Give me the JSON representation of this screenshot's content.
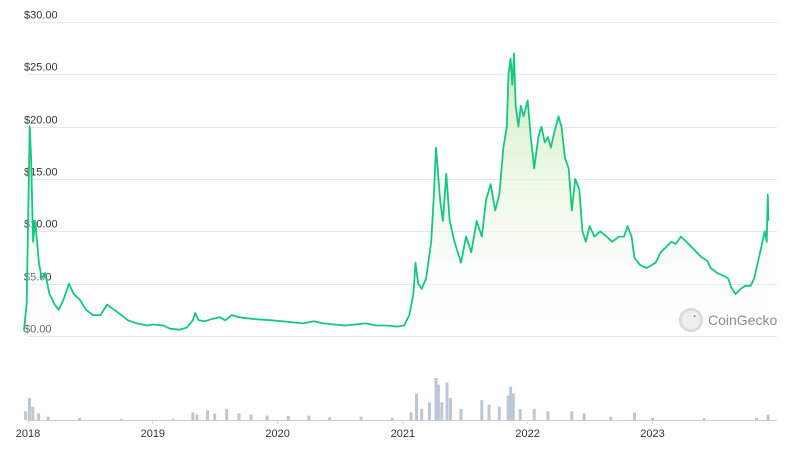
{
  "chart_data": {
    "type": "area",
    "y_axis": {
      "min": 0,
      "max": 30,
      "ticks": [
        {
          "value": 0,
          "label": "$0.00"
        },
        {
          "value": 5,
          "label": "$5.00"
        },
        {
          "value": 10,
          "label": "$10.00"
        },
        {
          "value": 15,
          "label": "$15.00"
        },
        {
          "value": 20,
          "label": "$20.00"
        },
        {
          "value": 25,
          "label": "$25.00"
        },
        {
          "value": 30,
          "label": "$30.00"
        }
      ],
      "grid": true
    },
    "x_axis": {
      "min": "2018-01-01",
      "max": "2023-12-31",
      "ticks": [
        {
          "value": "2018-01-01",
          "label": "2018"
        },
        {
          "value": "2019-01-01",
          "label": "2019"
        },
        {
          "value": "2020-01-01",
          "label": "2020"
        },
        {
          "value": "2021-01-01",
          "label": "2021"
        },
        {
          "value": "2022-01-01",
          "label": "2022"
        },
        {
          "value": "2023-01-01",
          "label": "2023"
        }
      ]
    },
    "series": [
      {
        "colors": {
          "line": "#16c784",
          "fill_top": "#c9eab4",
          "fill_bottom": "#ffffff"
        },
        "points": [
          [
            "2017-12-20",
            0.5
          ],
          [
            "2017-12-28",
            3.0
          ],
          [
            "2018-01-02",
            12.0
          ],
          [
            "2018-01-06",
            20.0
          ],
          [
            "2018-01-10",
            17.0
          ],
          [
            "2018-01-16",
            9.0
          ],
          [
            "2018-01-22",
            11.0
          ],
          [
            "2018-02-02",
            7.0
          ],
          [
            "2018-02-10",
            5.5
          ],
          [
            "2018-02-20",
            6.0
          ],
          [
            "2018-03-05",
            4.0
          ],
          [
            "2018-03-20",
            3.0
          ],
          [
            "2018-04-01",
            2.5
          ],
          [
            "2018-04-15",
            3.5
          ],
          [
            "2018-05-01",
            5.0
          ],
          [
            "2018-05-15",
            4.0
          ],
          [
            "2018-06-01",
            3.5
          ],
          [
            "2018-06-20",
            2.5
          ],
          [
            "2018-07-10",
            2.0
          ],
          [
            "2018-08-01",
            2.0
          ],
          [
            "2018-08-20",
            3.0
          ],
          [
            "2018-09-10",
            2.5
          ],
          [
            "2018-10-01",
            2.0
          ],
          [
            "2018-10-20",
            1.5
          ],
          [
            "2018-11-15",
            1.2
          ],
          [
            "2018-12-15",
            1.0
          ],
          [
            "2019-01-01",
            1.1
          ],
          [
            "2019-02-01",
            1.0
          ],
          [
            "2019-02-20",
            0.7
          ],
          [
            "2019-03-20",
            0.6
          ],
          [
            "2019-04-10",
            0.8
          ],
          [
            "2019-04-28",
            1.5
          ],
          [
            "2019-05-05",
            2.2
          ],
          [
            "2019-05-15",
            1.5
          ],
          [
            "2019-06-01",
            1.4
          ],
          [
            "2019-06-20",
            1.6
          ],
          [
            "2019-07-15",
            1.8
          ],
          [
            "2019-08-01",
            1.5
          ],
          [
            "2019-08-20",
            2.0
          ],
          [
            "2019-09-10",
            1.8
          ],
          [
            "2019-10-01",
            1.7
          ],
          [
            "2019-11-01",
            1.6
          ],
          [
            "2019-12-15",
            1.5
          ],
          [
            "2020-01-15",
            1.4
          ],
          [
            "2020-02-15",
            1.3
          ],
          [
            "2020-03-15",
            1.2
          ],
          [
            "2020-04-15",
            1.4
          ],
          [
            "2020-05-15",
            1.2
          ],
          [
            "2020-06-15",
            1.1
          ],
          [
            "2020-07-15",
            1.0
          ],
          [
            "2020-08-15",
            1.1
          ],
          [
            "2020-09-15",
            1.2
          ],
          [
            "2020-10-15",
            1.0
          ],
          [
            "2020-11-15",
            1.0
          ],
          [
            "2020-12-15",
            0.9
          ],
          [
            "2021-01-05",
            1.0
          ],
          [
            "2021-01-20",
            2.0
          ],
          [
            "2021-02-01",
            4.0
          ],
          [
            "2021-02-07",
            7.0
          ],
          [
            "2021-02-15",
            5.0
          ],
          [
            "2021-02-25",
            4.5
          ],
          [
            "2021-03-10",
            5.5
          ],
          [
            "2021-03-25",
            9.0
          ],
          [
            "2021-04-01",
            13.0
          ],
          [
            "2021-04-08",
            18.0
          ],
          [
            "2021-04-13",
            16.0
          ],
          [
            "2021-04-20",
            13.0
          ],
          [
            "2021-04-28",
            11.0
          ],
          [
            "2021-05-08",
            15.5
          ],
          [
            "2021-05-18",
            11.0
          ],
          [
            "2021-06-01",
            9.0
          ],
          [
            "2021-06-20",
            7.0
          ],
          [
            "2021-07-05",
            9.5
          ],
          [
            "2021-07-20",
            8.0
          ],
          [
            "2021-08-05",
            11.0
          ],
          [
            "2021-08-20",
            9.5
          ],
          [
            "2021-09-01",
            13.0
          ],
          [
            "2021-09-15",
            14.5
          ],
          [
            "2021-09-28",
            12.0
          ],
          [
            "2021-10-10",
            13.5
          ],
          [
            "2021-10-22",
            18.0
          ],
          [
            "2021-11-01",
            20.0
          ],
          [
            "2021-11-06",
            25.0
          ],
          [
            "2021-11-12",
            26.5
          ],
          [
            "2021-11-17",
            24.0
          ],
          [
            "2021-11-22",
            27.0
          ],
          [
            "2021-11-27",
            22.0
          ],
          [
            "2021-12-05",
            20.0
          ],
          [
            "2021-12-12",
            22.0
          ],
          [
            "2021-12-20",
            21.0
          ],
          [
            "2022-01-01",
            22.5
          ],
          [
            "2022-01-10",
            19.0
          ],
          [
            "2022-01-20",
            16.0
          ],
          [
            "2022-02-01",
            19.0
          ],
          [
            "2022-02-10",
            20.0
          ],
          [
            "2022-02-20",
            18.5
          ],
          [
            "2022-03-01",
            19.0
          ],
          [
            "2022-03-10",
            18.0
          ],
          [
            "2022-03-20",
            19.5
          ],
          [
            "2022-04-01",
            21.0
          ],
          [
            "2022-04-10",
            20.0
          ],
          [
            "2022-04-20",
            17.0
          ],
          [
            "2022-05-01",
            16.0
          ],
          [
            "2022-05-10",
            12.0
          ],
          [
            "2022-05-20",
            15.0
          ],
          [
            "2022-06-01",
            14.0
          ],
          [
            "2022-06-10",
            10.0
          ],
          [
            "2022-06-20",
            9.0
          ],
          [
            "2022-07-01",
            10.5
          ],
          [
            "2022-07-15",
            9.5
          ],
          [
            "2022-08-01",
            10.0
          ],
          [
            "2022-08-20",
            9.5
          ],
          [
            "2022-09-05",
            9.0
          ],
          [
            "2022-09-25",
            9.5
          ],
          [
            "2022-10-10",
            9.5
          ],
          [
            "2022-10-20",
            10.5
          ],
          [
            "2022-11-01",
            9.5
          ],
          [
            "2022-11-09",
            7.5
          ],
          [
            "2022-11-25",
            6.8
          ],
          [
            "2022-12-15",
            6.5
          ],
          [
            "2023-01-10",
            7.0
          ],
          [
            "2023-01-25",
            8.0
          ],
          [
            "2023-02-10",
            8.5
          ],
          [
            "2023-02-25",
            9.0
          ],
          [
            "2023-03-10",
            8.8
          ],
          [
            "2023-03-25",
            9.5
          ],
          [
            "2023-04-10",
            9.0
          ],
          [
            "2023-04-25",
            8.5
          ],
          [
            "2023-05-10",
            8.0
          ],
          [
            "2023-05-25",
            7.5
          ],
          [
            "2023-06-10",
            7.2
          ],
          [
            "2023-06-20",
            6.5
          ],
          [
            "2023-07-10",
            6.0
          ],
          [
            "2023-07-25",
            5.8
          ],
          [
            "2023-08-10",
            5.5
          ],
          [
            "2023-08-20",
            4.6
          ],
          [
            "2023-09-01",
            4.0
          ],
          [
            "2023-09-15",
            4.5
          ],
          [
            "2023-09-30",
            4.8
          ],
          [
            "2023-10-15",
            4.8
          ],
          [
            "2023-10-25",
            5.5
          ],
          [
            "2023-11-05",
            7.0
          ],
          [
            "2023-11-15",
            8.5
          ],
          [
            "2023-11-25",
            10.0
          ],
          [
            "2023-12-01",
            9.0
          ],
          [
            "2023-12-04",
            13.5
          ],
          [
            "2023-12-06",
            11.0
          ]
        ]
      }
    ],
    "volume": {
      "color": "#bcc7d6",
      "points": [
        [
          "2017-12-25",
          0.4
        ],
        [
          "2018-01-05",
          1.0
        ],
        [
          "2018-01-15",
          0.6
        ],
        [
          "2018-02-01",
          0.3
        ],
        [
          "2018-03-01",
          0.15
        ],
        [
          "2018-06-01",
          0.1
        ],
        [
          "2018-10-01",
          0.05
        ],
        [
          "2019-03-01",
          0.05
        ],
        [
          "2019-04-28",
          0.35
        ],
        [
          "2019-05-10",
          0.25
        ],
        [
          "2019-06-10",
          0.45
        ],
        [
          "2019-07-01",
          0.3
        ],
        [
          "2019-08-05",
          0.5
        ],
        [
          "2019-09-10",
          0.3
        ],
        [
          "2019-10-15",
          0.25
        ],
        [
          "2019-12-01",
          0.2
        ],
        [
          "2020-02-01",
          0.18
        ],
        [
          "2020-04-01",
          0.2
        ],
        [
          "2020-06-01",
          0.12
        ],
        [
          "2020-09-01",
          0.15
        ],
        [
          "2020-12-01",
          0.1
        ],
        [
          "2021-01-25",
          0.35
        ],
        [
          "2021-02-10",
          1.2
        ],
        [
          "2021-02-25",
          0.5
        ],
        [
          "2021-03-20",
          0.8
        ],
        [
          "2021-04-08",
          1.9
        ],
        [
          "2021-04-15",
          1.6
        ],
        [
          "2021-04-25",
          0.8
        ],
        [
          "2021-05-10",
          1.7
        ],
        [
          "2021-05-20",
          1.0
        ],
        [
          "2021-06-20",
          0.5
        ],
        [
          "2021-08-20",
          0.9
        ],
        [
          "2021-09-10",
          0.7
        ],
        [
          "2021-10-10",
          0.6
        ],
        [
          "2021-11-05",
          1.1
        ],
        [
          "2021-11-12",
          1.5
        ],
        [
          "2021-11-20",
          1.2
        ],
        [
          "2021-12-10",
          0.5
        ],
        [
          "2022-01-20",
          0.5
        ],
        [
          "2022-03-01",
          0.4
        ],
        [
          "2022-05-10",
          0.4
        ],
        [
          "2022-06-15",
          0.3
        ],
        [
          "2022-09-01",
          0.15
        ],
        [
          "2022-11-09",
          0.35
        ],
        [
          "2023-01-01",
          0.1
        ],
        [
          "2023-06-01",
          0.08
        ],
        [
          "2023-11-01",
          0.1
        ],
        [
          "2023-12-05",
          0.25
        ]
      ]
    }
  },
  "watermark": {
    "text": "CoinGecko",
    "icon": "coingecko-logo-icon"
  }
}
